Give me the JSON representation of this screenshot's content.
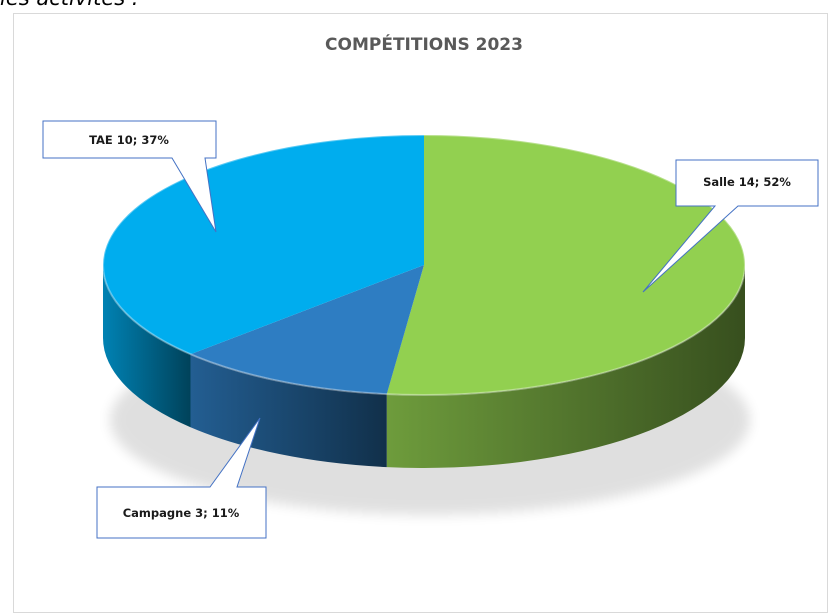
{
  "page_fragment_text": "les activités :",
  "chart_data": {
    "type": "pie",
    "style": "3d",
    "title": "COMPÉTITIONS 2023",
    "legend": "none",
    "slices": [
      {
        "label": "Salle",
        "value": 14,
        "percent": 52,
        "color": "#92d050",
        "data_label": "Salle 14; 52%"
      },
      {
        "label": "Campagne",
        "value": 3,
        "percent": 11,
        "color": "#2e7dc2",
        "data_label": "Campagne 3; 11%"
      },
      {
        "label": "TAE",
        "value": 10,
        "percent": 37,
        "color": "#00adee",
        "data_label": "TAE 10; 37%"
      }
    ]
  }
}
